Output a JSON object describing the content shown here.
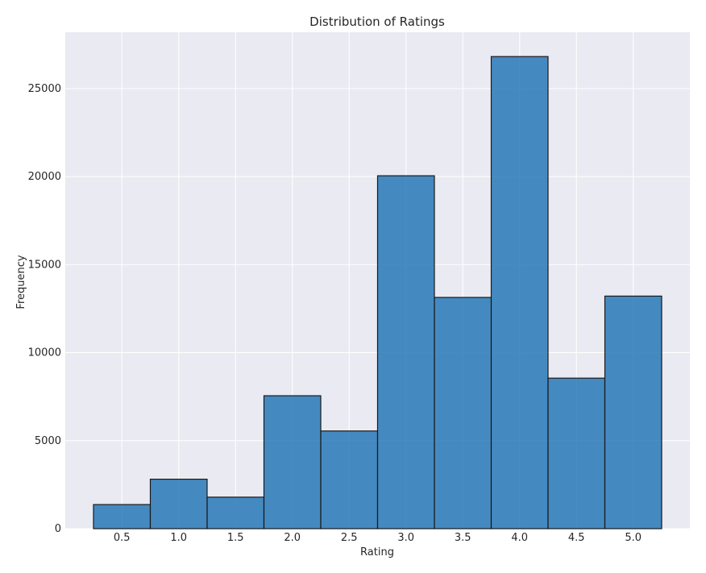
{
  "chart_data": {
    "type": "bar",
    "title": "Distribution of Ratings",
    "xlabel": "Rating",
    "ylabel": "Frequency",
    "categories": [
      "0.5",
      "1.0",
      "1.5",
      "2.0",
      "2.5",
      "3.0",
      "3.5",
      "4.0",
      "4.5",
      "5.0"
    ],
    "values": [
      1370,
      2811,
      1791,
      7551,
      5550,
      20047,
      13136,
      26818,
      8551,
      13211
    ],
    "ylim": [
      0,
      28200
    ],
    "yticks": [
      0,
      5000,
      10000,
      15000,
      20000,
      25000
    ],
    "grid": true,
    "colors": {
      "bar": "#2878b8",
      "edge": "#1a1a1a",
      "plot_bg": "#eaeaf2",
      "grid": "#ffffff"
    }
  }
}
